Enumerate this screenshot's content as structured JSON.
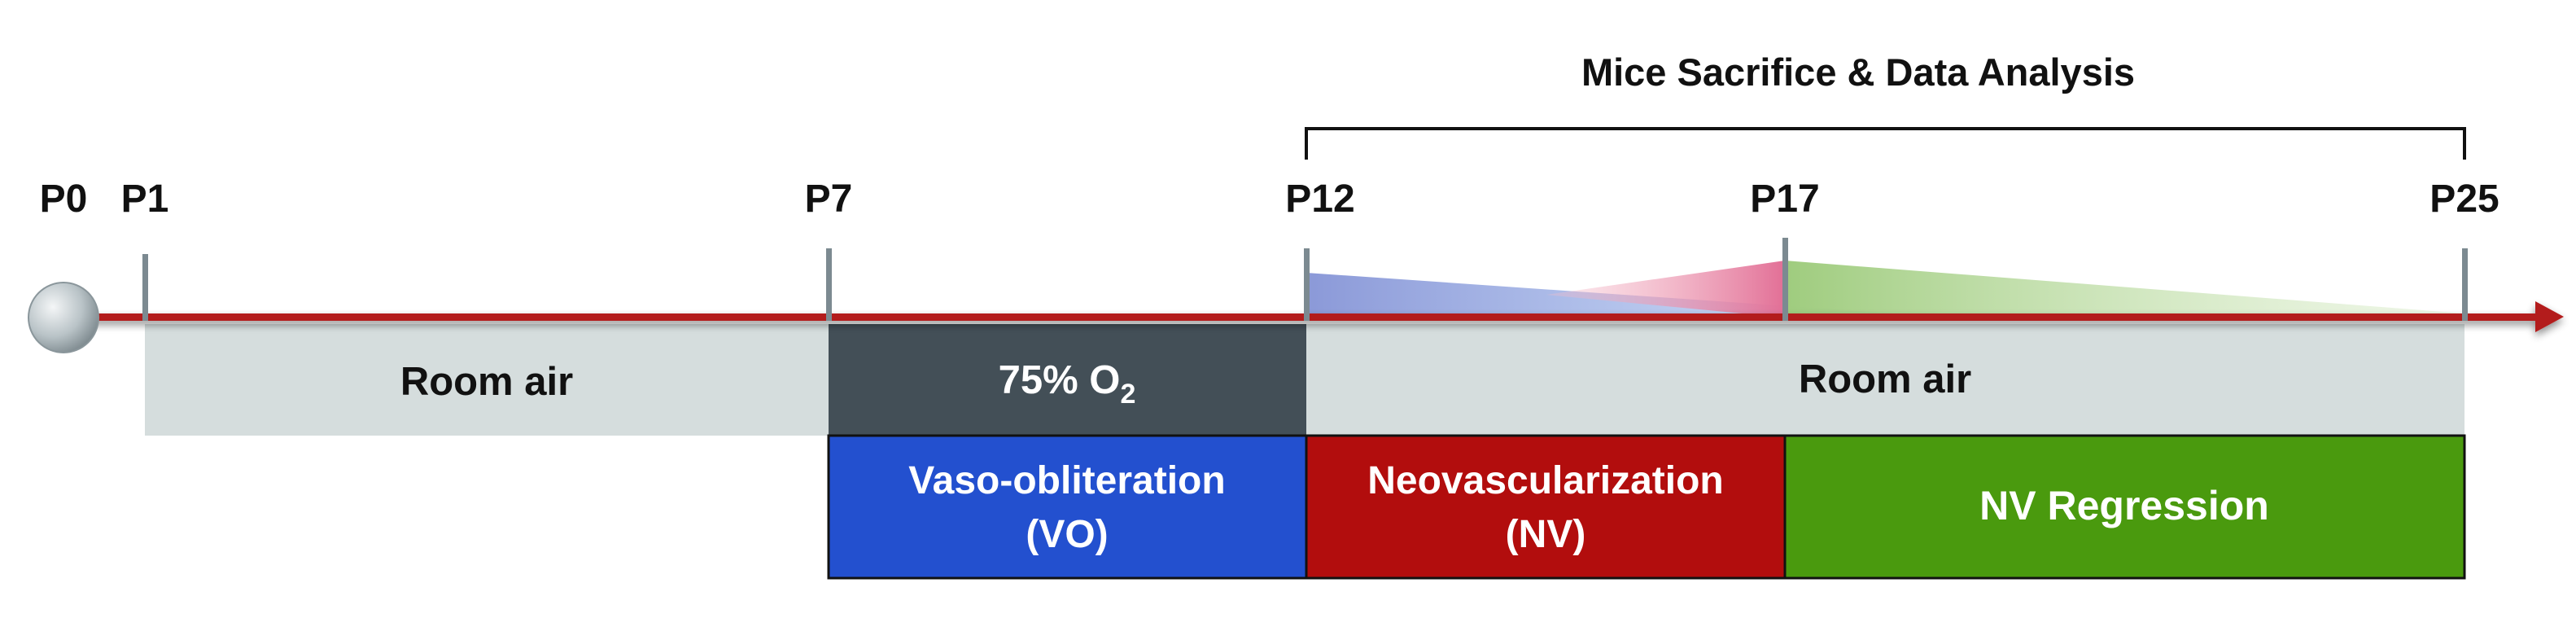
{
  "header": {
    "title": "Mice Sacrifice & Data Analysis"
  },
  "timepoints": [
    "P0",
    "P1",
    "P7",
    "P12",
    "P17",
    "P25"
  ],
  "conditions": {
    "room_air_1": "Room air",
    "oxygen_prefix": "75% O",
    "oxygen_subscript": "2",
    "room_air_2": "Room air"
  },
  "phases": {
    "vo_line1": "Vaso-obliteration",
    "vo_line2": "(VO)",
    "nv_line1": "Neovascularization",
    "nv_line2": "(NV)",
    "regression": "NV Regression"
  },
  "colors": {
    "arrow": "#b31b1b",
    "room_air": "#d5dddd",
    "oxygen": "#434f57",
    "vo": "#2350cf",
    "nv": "#b20d0d",
    "regression": "#4a9a0e",
    "tick": "#7c8a91",
    "vo_wedge": "#8ea6e6",
    "nv_wedge": "#e87aa0",
    "regression_wedge": "#a8d08a"
  }
}
